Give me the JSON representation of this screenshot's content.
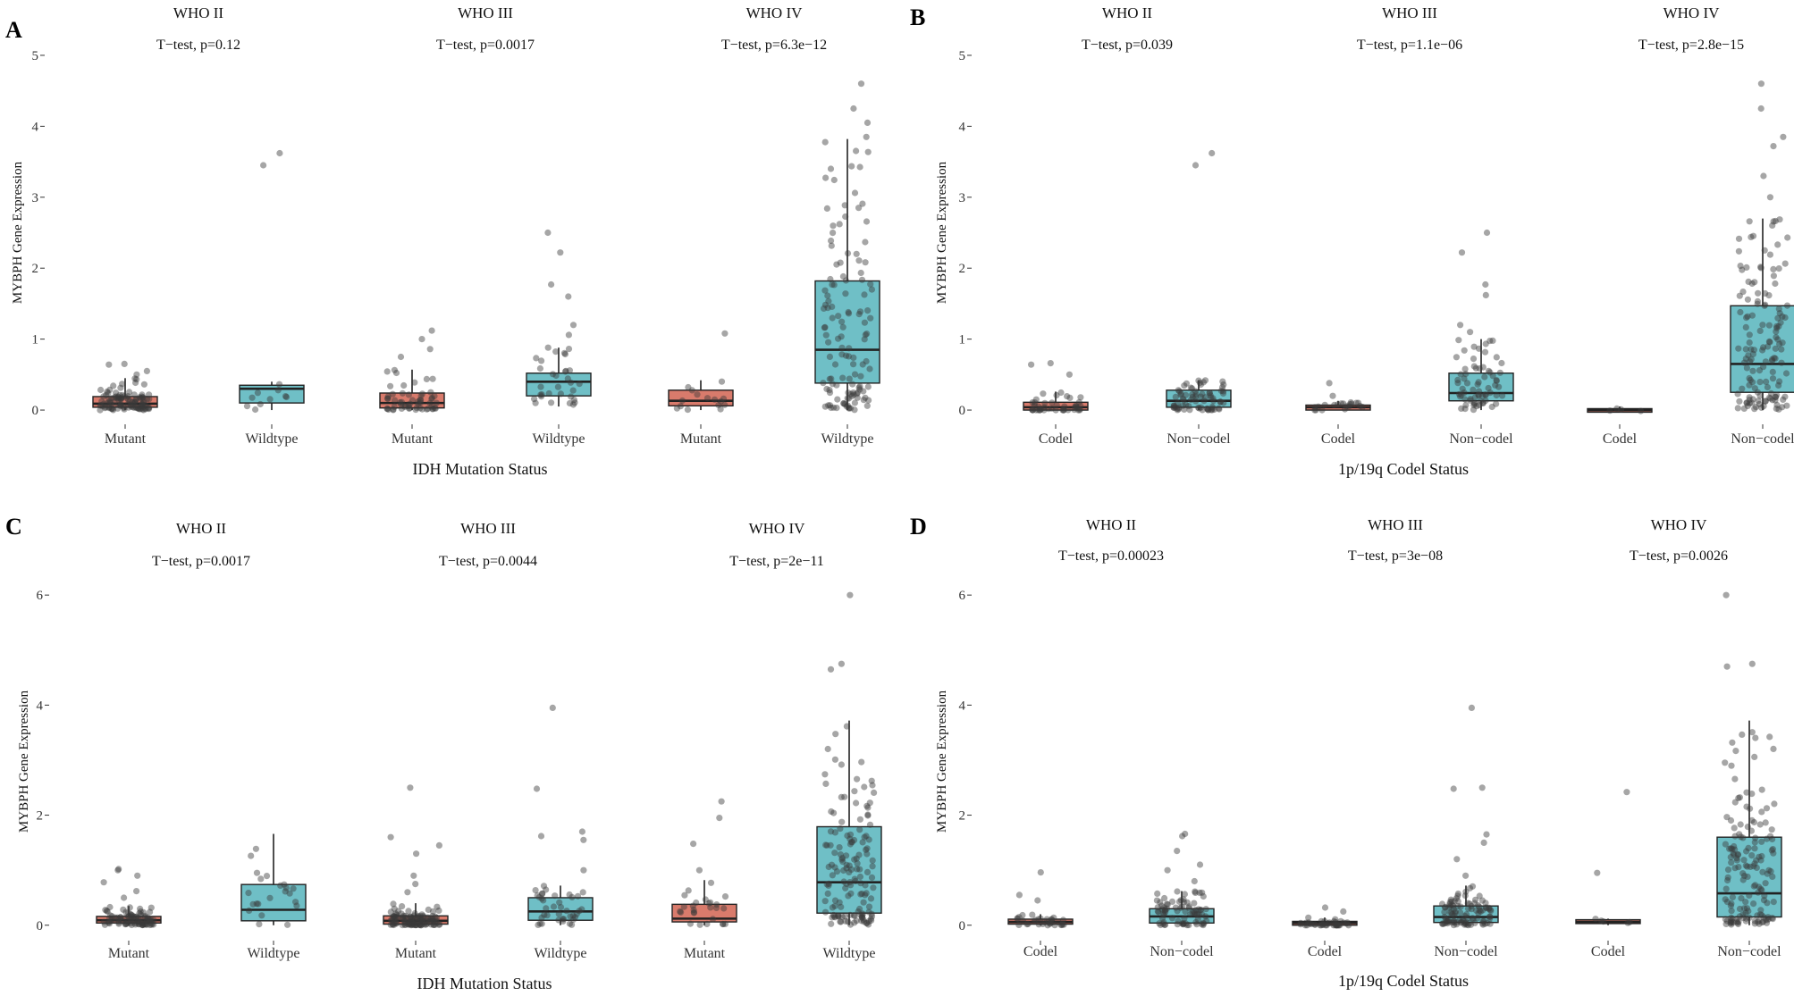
{
  "colors": {
    "mutant_fill": "#d97b6c",
    "wildtype_fill": "#6fbfc6",
    "box_stroke": "#222222",
    "point": "#3a3a3a"
  },
  "chart_data": [
    {
      "type": "boxplot",
      "panel": "A",
      "xlabel": "IDH Mutation Status",
      "ylabel": "MYBPH Gene Expression",
      "ylim": [
        -0.1,
        5.1
      ],
      "yticks": [
        0,
        1,
        2,
        3,
        4,
        5
      ],
      "groups": [
        {
          "title": "WHO II",
          "test": "T−test, p=0.12",
          "boxes": [
            {
              "category": "Mutant",
              "color": "mutant",
              "n": 110,
              "stats": {
                "q1": 0.04,
                "median": 0.09,
                "q3": 0.19,
                "lw": 0.0,
                "uw": 0.45
              },
              "outliers": [
                0.5,
                0.55,
                0.64,
                0.65
              ]
            },
            {
              "category": "Wildtype",
              "color": "wildtype",
              "n": 12,
              "stats": {
                "q1": 0.1,
                "median": 0.3,
                "q3": 0.35,
                "lw": 0.0,
                "uw": 0.4
              },
              "outliers": [
                3.45,
                3.62
              ]
            }
          ]
        },
        {
          "title": "WHO III",
          "test": "T−test, p=0.0017",
          "boxes": [
            {
              "category": "Mutant",
              "color": "mutant",
              "n": 60,
              "stats": {
                "q1": 0.03,
                "median": 0.1,
                "q3": 0.24,
                "lw": 0.0,
                "uw": 0.57
              },
              "outliers": [
                0.75,
                0.86,
                1.0,
                1.12
              ]
            },
            {
              "category": "Wildtype",
              "color": "wildtype",
              "n": 38,
              "stats": {
                "q1": 0.2,
                "median": 0.4,
                "q3": 0.52,
                "lw": 0.05,
                "uw": 0.88
              },
              "outliers": [
                1.06,
                1.2,
                1.6,
                1.77,
                2.22,
                2.5
              ]
            }
          ]
        },
        {
          "title": "WHO IV",
          "test": "T−test, p=6.3e−12",
          "boxes": [
            {
              "category": "Mutant",
              "color": "mutant",
              "n": 16,
              "stats": {
                "q1": 0.06,
                "median": 0.13,
                "q3": 0.28,
                "lw": 0.0,
                "uw": 0.42
              },
              "outliers": [
                1.08
              ]
            },
            {
              "category": "Wildtype",
              "color": "wildtype",
              "n": 130,
              "stats": {
                "q1": 0.38,
                "median": 0.85,
                "q3": 1.82,
                "lw": 0.0,
                "uw": 3.82
              },
              "outliers": [
                3.85,
                4.05,
                4.25,
                4.6
              ]
            }
          ]
        }
      ]
    },
    {
      "type": "boxplot",
      "panel": "B",
      "xlabel": "1p/19q Codel Status",
      "ylabel": "MYBPH Gene Expression",
      "ylim": [
        -0.1,
        5.1
      ],
      "yticks": [
        0,
        1,
        2,
        3,
        4,
        5
      ],
      "groups": [
        {
          "title": "WHO II",
          "test": "T−test, p=0.039",
          "boxes": [
            {
              "category": "Codel",
              "color": "mutant",
              "n": 45,
              "stats": {
                "q1": 0.0,
                "median": 0.04,
                "q3": 0.11,
                "lw": 0.0,
                "uw": 0.26
              },
              "outliers": [
                0.5,
                0.64,
                0.66
              ]
            },
            {
              "category": "Non−codel",
              "color": "wildtype",
              "n": 75,
              "stats": {
                "q1": 0.04,
                "median": 0.13,
                "q3": 0.28,
                "lw": 0.0,
                "uw": 0.42
              },
              "outliers": [
                3.45,
                3.62
              ]
            }
          ]
        },
        {
          "title": "WHO III",
          "test": "T−test, p=1.1e−06",
          "boxes": [
            {
              "category": "Codel",
              "color": "mutant",
              "n": 22,
              "stats": {
                "q1": 0.0,
                "median": 0.04,
                "q3": 0.07,
                "lw": 0.0,
                "uw": 0.13
              },
              "outliers": [
                0.2,
                0.38
              ]
            },
            {
              "category": "Non−codel",
              "color": "wildtype",
              "n": 75,
              "stats": {
                "q1": 0.13,
                "median": 0.24,
                "q3": 0.52,
                "lw": 0.0,
                "uw": 1.0
              },
              "outliers": [
                1.1,
                1.2,
                1.62,
                1.77,
                2.22,
                2.5
              ]
            }
          ]
        },
        {
          "title": "WHO IV",
          "test": "T−test, p=2.8e−15",
          "boxes": [
            {
              "category": "Codel",
              "color": "mutant",
              "n": 4,
              "stats": {
                "q1": -0.03,
                "median": 0.0,
                "q3": 0.02,
                "lw": -0.03,
                "uw": 0.05
              },
              "outliers": []
            },
            {
              "category": "Non−codel",
              "color": "wildtype",
              "n": 145,
              "stats": {
                "q1": 0.25,
                "median": 0.65,
                "q3": 1.47,
                "lw": 0.0,
                "uw": 2.7
              },
              "outliers": [
                3.0,
                3.3,
                3.72,
                3.85,
                4.25,
                4.6
              ]
            }
          ]
        }
      ]
    },
    {
      "type": "boxplot",
      "panel": "C",
      "xlabel": "IDH Mutation Status",
      "ylabel": "MYBPH Gene Expression",
      "ylim": [
        -0.15,
        6.1
      ],
      "yticks": [
        0,
        2,
        4,
        6
      ],
      "groups": [
        {
          "title": "WHO II",
          "test": "T−test, p=0.0017",
          "boxes": [
            {
              "category": "Mutant",
              "color": "mutant",
              "n": 95,
              "stats": {
                "q1": 0.04,
                "median": 0.09,
                "q3": 0.16,
                "lw": 0.0,
                "uw": 0.35
              },
              "outliers": [
                0.5,
                0.62,
                0.78,
                0.9,
                1.0,
                1.02
              ]
            },
            {
              "category": "Wildtype",
              "color": "wildtype",
              "n": 22,
              "stats": {
                "q1": 0.08,
                "median": 0.28,
                "q3": 0.74,
                "lw": 0.0,
                "uw": 1.66
              },
              "outliers": []
            }
          ]
        },
        {
          "title": "WHO III",
          "test": "T−test, p=0.0044",
          "boxes": [
            {
              "category": "Mutant",
              "color": "mutant",
              "n": 120,
              "stats": {
                "q1": 0.02,
                "median": 0.08,
                "q3": 0.17,
                "lw": 0.0,
                "uw": 0.4
              },
              "outliers": [
                0.6,
                0.75,
                0.9,
                1.3,
                1.45,
                1.6,
                2.5
              ]
            },
            {
              "category": "Wildtype",
              "color": "wildtype",
              "n": 45,
              "stats": {
                "q1": 0.09,
                "median": 0.25,
                "q3": 0.5,
                "lw": 0.0,
                "uw": 0.72
              },
              "outliers": [
                1.0,
                1.55,
                1.62,
                1.7,
                2.48,
                3.95
              ]
            }
          ]
        },
        {
          "title": "WHO IV",
          "test": "T−test, p=2e−11",
          "boxes": [
            {
              "category": "Mutant",
              "color": "mutant",
              "n": 30,
              "stats": {
                "q1": 0.06,
                "median": 0.12,
                "q3": 0.38,
                "lw": 0.0,
                "uw": 0.82
              },
              "outliers": [
                1.0,
                1.48,
                1.95,
                2.25
              ]
            },
            {
              "category": "Wildtype",
              "color": "wildtype",
              "n": 150,
              "stats": {
                "q1": 0.22,
                "median": 0.78,
                "q3": 1.79,
                "lw": 0.0,
                "uw": 3.72
              },
              "outliers": [
                4.65,
                4.75,
                6.0
              ]
            }
          ]
        }
      ]
    },
    {
      "type": "boxplot",
      "panel": "D",
      "xlabel": "1p/19q Codel Status",
      "ylabel": "MYBPH Gene Expression",
      "ylim": [
        -0.15,
        6.1
      ],
      "yticks": [
        0,
        2,
        4,
        6
      ],
      "groups": [
        {
          "title": "WHO II",
          "test": "T−test, p=0.00023",
          "boxes": [
            {
              "category": "Codel",
              "color": "mutant",
              "n": 35,
              "stats": {
                "q1": 0.02,
                "median": 0.06,
                "q3": 0.11,
                "lw": 0.0,
                "uw": 0.2
              },
              "outliers": [
                0.45,
                0.55,
                0.96
              ]
            },
            {
              "category": "Non−codel",
              "color": "wildtype",
              "n": 85,
              "stats": {
                "q1": 0.04,
                "median": 0.16,
                "q3": 0.3,
                "lw": 0.0,
                "uw": 0.62
              },
              "outliers": [
                0.8,
                1.0,
                1.1,
                1.35,
                1.62,
                1.66
              ]
            }
          ]
        },
        {
          "title": "WHO III",
          "test": "T−test, p=3e−08",
          "boxes": [
            {
              "category": "Codel",
              "color": "mutant",
              "n": 40,
              "stats": {
                "q1": 0.0,
                "median": 0.04,
                "q3": 0.07,
                "lw": 0.0,
                "uw": 0.14
              },
              "outliers": [
                0.25,
                0.32
              ]
            },
            {
              "category": "Non−codel",
              "color": "wildtype",
              "n": 110,
              "stats": {
                "q1": 0.05,
                "median": 0.15,
                "q3": 0.35,
                "lw": 0.0,
                "uw": 0.72
              },
              "outliers": [
                0.9,
                1.2,
                1.5,
                1.65,
                2.48,
                2.5,
                3.95
              ]
            }
          ]
        },
        {
          "title": "WHO IV",
          "test": "T−test, p=0.0026",
          "boxes": [
            {
              "category": "Codel",
              "color": "mutant",
              "n": 7,
              "stats": {
                "q1": 0.03,
                "median": 0.06,
                "q3": 0.1,
                "lw": 0.0,
                "uw": 0.12
              },
              "outliers": [
                0.95,
                2.42
              ]
            },
            {
              "category": "Non−codel",
              "color": "wildtype",
              "n": 160,
              "stats": {
                "q1": 0.15,
                "median": 0.58,
                "q3": 1.6,
                "lw": 0.0,
                "uw": 3.72
              },
              "outliers": [
                4.7,
                4.75,
                6.0
              ]
            }
          ]
        }
      ]
    }
  ]
}
